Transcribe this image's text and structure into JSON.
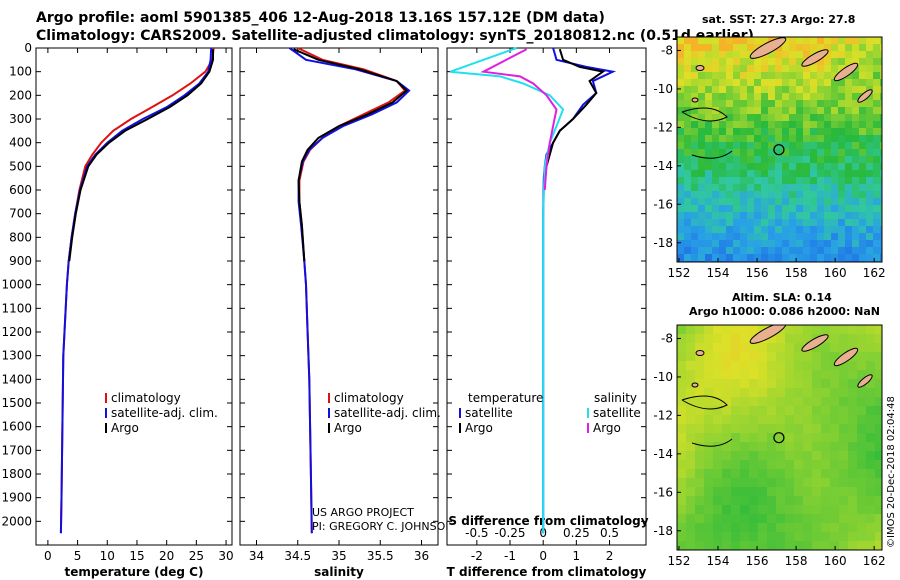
{
  "title_line1": "Argo profile: aoml 5901385_406 12-Aug-2018 13.16S 157.12E (DM data)",
  "title_line2": "Climatology: CARS2009. Satellite-adjusted climatology: synTS_20180812.nc (0.51d earlier)",
  "map1_title": "sat. SST: 27.3 Argo: 27.8",
  "map2_title_line1": "Altim. SLA: 0.14",
  "map2_title_line2": "Argo h1000: 0.086 h2000: NaN",
  "watermark": "©IMOS 20-Dec-2018 02:04:48",
  "credit_line1": "US ARGO PROJECT",
  "credit_line2": "PI: GREGORY C. JOHNSON",
  "colors": {
    "climatology": "#e01010",
    "satellite": "#1010e0",
    "argo": "#000000",
    "sat_salinity": "#20e0f0",
    "argo_salinity": "#e020e0"
  },
  "chart_data": [
    {
      "type": "line",
      "xlabel": "temperature (deg C)",
      "ylabel": "",
      "xlim": [
        -2,
        31
      ],
      "ylim": [
        2100,
        0
      ],
      "xticks": [
        0,
        5,
        10,
        15,
        20,
        25,
        30
      ],
      "yticks": [
        0,
        100,
        200,
        300,
        400,
        500,
        600,
        700,
        800,
        900,
        1000,
        1100,
        1200,
        1300,
        1400,
        1500,
        1600,
        1700,
        1800,
        1900,
        2000
      ],
      "legend": [
        "climatology",
        "satellite-adj. clim.",
        "Argo"
      ],
      "series": [
        {
          "name": "climatology",
          "color_key": "climatology",
          "x": [
            27.9,
            27.7,
            26.5,
            24.0,
            21.0,
            17.5,
            14.0,
            11.0,
            9.0,
            7.5,
            6.3,
            5.3,
            4.6,
            4.0,
            3.5,
            3.2,
            3.0,
            2.8,
            2.6,
            2.5,
            2.4,
            2.3,
            2.2
          ],
          "y": [
            0,
            50,
            100,
            150,
            200,
            250,
            300,
            350,
            400,
            450,
            500,
            600,
            700,
            800,
            900,
            1000,
            1100,
            1200,
            1300,
            1500,
            1700,
            1900,
            2050
          ]
        },
        {
          "name": "satellite-adj. clim.",
          "color_key": "satellite",
          "x": [
            27.5,
            27.4,
            27.0,
            25.5,
            23.0,
            20.0,
            16.0,
            12.5,
            10.0,
            8.0,
            6.6,
            5.4,
            4.6,
            4.0,
            3.5,
            3.2,
            3.0,
            2.8,
            2.6,
            2.5,
            2.4,
            2.3,
            2.2
          ],
          "y": [
            0,
            50,
            100,
            150,
            200,
            250,
            300,
            350,
            400,
            450,
            500,
            600,
            700,
            800,
            900,
            1000,
            1100,
            1200,
            1300,
            1500,
            1700,
            1900,
            2050
          ]
        },
        {
          "name": "Argo",
          "color_key": "argo",
          "x": [
            27.8,
            27.8,
            27.2,
            25.8,
            23.5,
            20.5,
            16.8,
            13.0,
            10.3,
            8.2,
            6.8,
            5.5,
            4.7,
            4.1,
            3.6
          ],
          "y": [
            5,
            50,
            100,
            150,
            200,
            250,
            300,
            350,
            400,
            450,
            500,
            600,
            700,
            800,
            900
          ]
        }
      ]
    },
    {
      "type": "line",
      "xlabel": "salinity",
      "ylabel": "",
      "xlim": [
        33.8,
        36.2
      ],
      "ylim": [
        2100,
        0
      ],
      "xticks": [
        34,
        34.5,
        35,
        35.5,
        36
      ],
      "legend": [
        "climatology",
        "satellite-adj. clim.",
        "Argo"
      ],
      "series": [
        {
          "name": "climatology",
          "color_key": "climatology",
          "x": [
            34.5,
            34.8,
            35.3,
            35.7,
            35.8,
            35.6,
            35.3,
            35.0,
            34.8,
            34.65,
            34.57,
            34.52,
            34.52,
            34.55,
            34.58,
            34.6,
            34.62,
            34.64,
            34.65,
            34.66,
            34.67
          ],
          "y": [
            0,
            50,
            90,
            140,
            180,
            230,
            280,
            330,
            380,
            430,
            480,
            560,
            650,
            750,
            900,
            1000,
            1200,
            1400,
            1600,
            1800,
            2050
          ]
        },
        {
          "name": "satellite-adj. clim.",
          "color_key": "satellite",
          "x": [
            34.4,
            34.6,
            35.2,
            35.7,
            35.85,
            35.7,
            35.4,
            35.05,
            34.8,
            34.64,
            34.56,
            34.51,
            34.51,
            34.54,
            34.58,
            34.6,
            34.62,
            34.64,
            34.65,
            34.66,
            34.67
          ],
          "y": [
            0,
            50,
            90,
            140,
            180,
            230,
            280,
            330,
            380,
            430,
            480,
            560,
            650,
            750,
            900,
            1000,
            1200,
            1400,
            1600,
            1800,
            2050
          ]
        },
        {
          "name": "Argo",
          "color_key": "argo",
          "x": [
            34.45,
            34.75,
            35.25,
            35.7,
            35.82,
            35.65,
            35.35,
            35.0,
            34.75,
            34.62,
            34.55,
            34.51,
            34.52,
            34.55,
            34.58
          ],
          "y": [
            5,
            50,
            90,
            140,
            180,
            230,
            280,
            330,
            380,
            430,
            480,
            560,
            650,
            750,
            900
          ]
        }
      ]
    },
    {
      "type": "line",
      "xlabel": "T difference from climatology",
      "top_label": "S difference from climatology",
      "xlim": [
        -2.9,
        3.1
      ],
      "ylim": [
        2100,
        0
      ],
      "xticks": [
        -2,
        -1,
        0,
        1,
        2
      ],
      "top_ticks": [
        {
          "label": "-0.5",
          "x": -2
        },
        {
          "label": "-0.25",
          "x": -1
        },
        {
          "label": "0",
          "x": 0
        },
        {
          "label": "0.25",
          "x": 1
        },
        {
          "label": "0.5",
          "x": 2
        }
      ],
      "legend_left_title": "temperature",
      "legend_left": [
        "satellite",
        "Argo"
      ],
      "legend_right_title": "salinity",
      "legend_right": [
        "satellite",
        "Argo"
      ],
      "series": [
        {
          "name": "T satellite",
          "color_key": "satellite",
          "x": [
            0.3,
            0.4,
            1.3,
            2.1,
            1.5,
            1.6,
            1.2,
            0.9,
            0.5,
            0.3,
            0.1,
            0.05,
            0.02,
            0.0,
            0.0,
            0.0,
            0.0
          ],
          "y": [
            0,
            50,
            80,
            100,
            140,
            190,
            240,
            300,
            350,
            400,
            450,
            500,
            550,
            700,
            1000,
            1500,
            2050
          ]
        },
        {
          "name": "T Argo",
          "color_key": "argo",
          "x": [
            0.5,
            0.6,
            1.1,
            1.8,
            1.4,
            1.6,
            1.3,
            0.9,
            0.5,
            0.3,
            0.2,
            0.1,
            0.05
          ],
          "y": [
            5,
            50,
            80,
            100,
            140,
            190,
            240,
            300,
            350,
            400,
            450,
            500,
            550
          ]
        },
        {
          "name": "S satellite",
          "color_key": "sat_salinity",
          "x": [
            -0.8,
            -2.8,
            -1.3,
            -0.6,
            0.2,
            0.6,
            0.4,
            0.2,
            0.05,
            0.0,
            0.0,
            0.0
          ],
          "y": [
            0,
            100,
            120,
            150,
            200,
            260,
            330,
            400,
            500,
            700,
            1000,
            2050
          ]
        },
        {
          "name": "S Argo",
          "color_key": "argo_salinity",
          "x": [
            -0.5,
            -1.8,
            -0.7,
            -0.3,
            0.1,
            0.4,
            0.3,
            0.2,
            0.1,
            0.05
          ],
          "y": [
            5,
            100,
            120,
            150,
            200,
            260,
            330,
            400,
            500,
            600
          ]
        }
      ]
    },
    {
      "type": "heatmap",
      "title": "sat. SST: 27.3 Argo: 27.8",
      "xticks": [
        152,
        154,
        156,
        158,
        160,
        162
      ],
      "yticks": [
        -8,
        -10,
        -12,
        -14,
        -16,
        -18
      ],
      "xlim": [
        151.9,
        162.4
      ],
      "ylim": [
        -19,
        -7.3
      ],
      "marker": {
        "lon": 157.12,
        "lat": -13.16
      }
    },
    {
      "type": "heatmap",
      "title": "Altim. SLA: 0.14",
      "xticks": [
        152,
        154,
        156,
        158,
        160,
        162
      ],
      "yticks": [
        -8,
        -10,
        -12,
        -14,
        -16,
        -18
      ],
      "xlim": [
        151.9,
        162.4
      ],
      "ylim": [
        -19,
        -7.3
      ],
      "marker": {
        "lon": 157.12,
        "lat": -13.16
      }
    }
  ]
}
